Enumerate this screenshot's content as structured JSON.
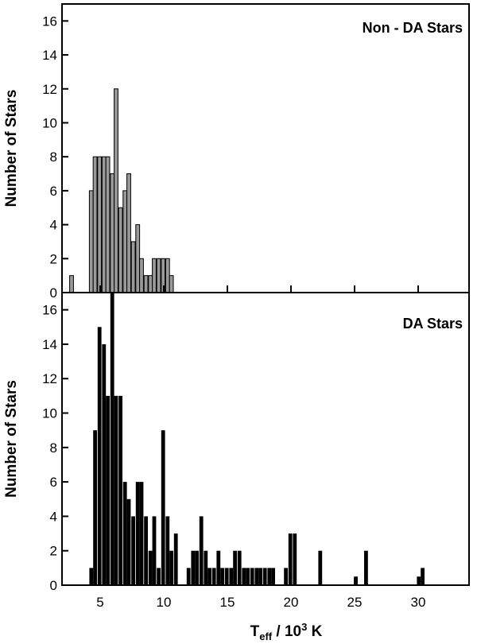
{
  "chart_data": [
    {
      "type": "bar",
      "title": "Non - DA Stars",
      "ylabel": "Number of Stars",
      "xlim": [
        2.0,
        34.0
      ],
      "ylim": [
        0,
        17
      ],
      "yticks": [
        0,
        2,
        4,
        6,
        8,
        10,
        12,
        14,
        16
      ],
      "xticks": [
        5,
        10,
        15,
        20,
        25,
        30
      ],
      "bar_color": "#9a9a9a",
      "bin_width": 0.3,
      "x": [
        2.75,
        4.3,
        4.6,
        4.95,
        5.3,
        5.6,
        5.95,
        6.25,
        6.6,
        6.95,
        7.25,
        7.6,
        7.95,
        8.25,
        8.6,
        8.95,
        9.25,
        9.6,
        9.95,
        10.3,
        10.6
      ],
      "values": [
        1,
        6,
        8,
        8,
        8,
        8,
        7,
        12,
        5,
        6,
        7,
        3,
        4,
        2,
        1,
        1,
        2,
        2,
        2,
        2,
        1
      ]
    },
    {
      "type": "bar",
      "title": "DA Stars",
      "ylabel": "Number of Stars",
      "xlabel": "T_eff / 10^3 K",
      "xlim": [
        2.0,
        34.0
      ],
      "ylim": [
        0,
        17
      ],
      "yticks": [
        0,
        2,
        4,
        6,
        8,
        10,
        12,
        14,
        16
      ],
      "xticks": [
        5,
        10,
        15,
        20,
        25,
        30
      ],
      "xtick_labels": [
        "5",
        "10",
        "15",
        "20",
        "25",
        "30"
      ],
      "bar_color": "#000000",
      "bin_width": 0.3,
      "x": [
        4.3,
        4.6,
        4.95,
        5.3,
        5.6,
        5.95,
        6.25,
        6.6,
        6.95,
        7.25,
        7.6,
        7.95,
        8.25,
        8.6,
        8.95,
        9.25,
        9.6,
        9.95,
        10.3,
        10.6,
        10.95,
        11.95,
        12.3,
        12.6,
        12.95,
        13.3,
        13.6,
        13.95,
        14.3,
        14.6,
        14.95,
        15.3,
        15.6,
        15.95,
        16.3,
        16.6,
        16.95,
        17.3,
        17.6,
        17.95,
        18.3,
        18.6,
        19.6,
        19.95,
        20.3,
        22.3,
        25.1,
        25.9,
        30.05,
        30.35
      ],
      "values": [
        1,
        9,
        15,
        14,
        11,
        17,
        11,
        11,
        6,
        5,
        4,
        6,
        6,
        4,
        2,
        4,
        1,
        9,
        4,
        2,
        3,
        1,
        2,
        2,
        4,
        2,
        1,
        1,
        2,
        1,
        1,
        1,
        2,
        2,
        1,
        1,
        1,
        1,
        1,
        1,
        1,
        1,
        1,
        3,
        3,
        2,
        0.5,
        2,
        0.5,
        1
      ]
    }
  ]
}
